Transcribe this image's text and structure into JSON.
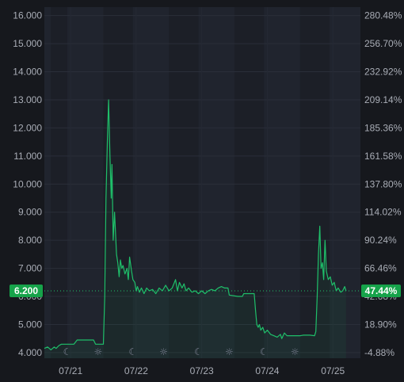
{
  "chart_data": {
    "type": "line",
    "x_tick_labels": [
      "07/21",
      "07/22",
      "07/23",
      "07/24",
      "07/25"
    ],
    "y_left_ticks": [
      "16.000",
      "15.000",
      "14.000",
      "13.000",
      "12.000",
      "11.000",
      "10.000",
      "9.000",
      "8.000",
      "7.000",
      "6.000",
      "5.000",
      "4.000"
    ],
    "y_right_ticks": [
      "280.48%",
      "256.70%",
      "232.92%",
      "209.14%",
      "185.36%",
      "161.58%",
      "137.80%",
      "114.02%",
      "90.24%",
      "66.46%",
      "42.68%",
      "18.90%",
      "-4.88%"
    ],
    "ylim": [
      3.8,
      16.3
    ],
    "xlim": [
      20.6,
      25.42
    ],
    "current_value_label": "6.200",
    "current_change_label": "47.44%",
    "current_value": 6.2,
    "night_bands": [
      [
        20.7,
        20.95
      ],
      [
        21.5,
        21.95
      ],
      [
        22.5,
        22.95
      ],
      [
        23.5,
        23.95
      ],
      [
        24.5,
        24.95
      ]
    ],
    "markers": [
      {
        "symbol": "moon",
        "x": 20.95
      },
      {
        "symbol": "sun",
        "x": 21.42
      },
      {
        "symbol": "moon",
        "x": 21.95
      },
      {
        "symbol": "sun",
        "x": 22.42
      },
      {
        "symbol": "moon",
        "x": 22.95
      },
      {
        "symbol": "sun",
        "x": 23.42
      },
      {
        "symbol": "moon",
        "x": 23.95
      },
      {
        "symbol": "sun",
        "x": 24.42
      }
    ],
    "colors": {
      "line": "#1fbf6a",
      "badge": "#16a34a",
      "background": "#16181d",
      "night": "#1c1f27",
      "day": "#20242e"
    },
    "series": [
      {
        "values": [
          [
            20.6,
            4.15
          ],
          [
            20.65,
            4.2
          ],
          [
            20.7,
            4.1
          ],
          [
            20.75,
            4.2
          ],
          [
            20.78,
            4.15
          ],
          [
            20.82,
            4.25
          ],
          [
            20.86,
            4.3
          ],
          [
            21.05,
            4.3
          ],
          [
            21.1,
            4.45
          ],
          [
            21.35,
            4.45
          ],
          [
            21.38,
            4.3
          ],
          [
            21.5,
            4.3
          ],
          [
            21.52,
            6.0
          ],
          [
            21.54,
            9.5
          ],
          [
            21.56,
            11.5
          ],
          [
            21.58,
            13.0
          ],
          [
            21.6,
            11.0
          ],
          [
            21.62,
            9.5
          ],
          [
            21.63,
            10.7
          ],
          [
            21.65,
            8.0
          ],
          [
            21.67,
            9.0
          ],
          [
            21.7,
            7.5
          ],
          [
            21.72,
            7.2
          ],
          [
            21.74,
            6.7
          ],
          [
            21.76,
            7.3
          ],
          [
            21.78,
            7.0
          ],
          [
            21.8,
            7.1
          ],
          [
            21.83,
            6.8
          ],
          [
            21.86,
            7.0
          ],
          [
            21.88,
            6.6
          ],
          [
            21.9,
            7.4
          ],
          [
            21.93,
            6.9
          ],
          [
            21.95,
            6.6
          ],
          [
            21.98,
            6.5
          ],
          [
            22.0,
            6.2
          ],
          [
            22.02,
            6.35
          ],
          [
            22.05,
            6.15
          ],
          [
            22.08,
            6.3
          ],
          [
            22.12,
            6.1
          ],
          [
            22.16,
            6.3
          ],
          [
            22.2,
            6.2
          ],
          [
            22.25,
            6.25
          ],
          [
            22.3,
            6.1
          ],
          [
            22.35,
            6.3
          ],
          [
            22.4,
            6.2
          ],
          [
            22.45,
            6.4
          ],
          [
            22.5,
            6.2
          ],
          [
            22.55,
            6.3
          ],
          [
            22.6,
            6.6
          ],
          [
            22.63,
            6.2
          ],
          [
            22.66,
            6.5
          ],
          [
            22.7,
            6.3
          ],
          [
            22.73,
            6.45
          ],
          [
            22.76,
            6.2
          ],
          [
            22.8,
            6.3
          ],
          [
            22.85,
            6.15
          ],
          [
            22.9,
            6.2
          ],
          [
            22.95,
            6.1
          ],
          [
            23.0,
            6.2
          ],
          [
            23.05,
            6.1
          ],
          [
            23.1,
            6.2
          ],
          [
            23.15,
            6.25
          ],
          [
            23.2,
            6.2
          ],
          [
            23.25,
            6.3
          ],
          [
            23.3,
            6.35
          ],
          [
            23.35,
            6.3
          ],
          [
            23.4,
            6.3
          ],
          [
            23.42,
            6.05
          ],
          [
            23.55,
            6.0
          ],
          [
            23.62,
            6.0
          ],
          [
            23.64,
            6.1
          ],
          [
            23.8,
            6.1
          ],
          [
            23.82,
            5.5
          ],
          [
            23.84,
            5.0
          ],
          [
            23.86,
            4.9
          ],
          [
            23.88,
            5.0
          ],
          [
            23.9,
            4.8
          ],
          [
            23.93,
            4.9
          ],
          [
            23.96,
            4.7
          ],
          [
            24.0,
            4.8
          ],
          [
            24.05,
            4.65
          ],
          [
            24.1,
            4.6
          ],
          [
            24.15,
            4.55
          ],
          [
            24.2,
            4.65
          ],
          [
            24.22,
            4.5
          ],
          [
            24.26,
            4.7
          ],
          [
            24.3,
            4.6
          ],
          [
            24.35,
            4.6
          ],
          [
            24.5,
            4.6
          ],
          [
            24.55,
            4.62
          ],
          [
            24.65,
            4.62
          ],
          [
            24.72,
            4.6
          ],
          [
            24.74,
            4.75
          ],
          [
            24.76,
            6.0
          ],
          [
            24.78,
            7.5
          ],
          [
            24.8,
            8.5
          ],
          [
            24.82,
            7.0
          ],
          [
            24.84,
            7.2
          ],
          [
            24.86,
            6.6
          ],
          [
            24.88,
            8.0
          ],
          [
            24.9,
            6.9
          ],
          [
            24.93,
            6.6
          ],
          [
            24.96,
            6.7
          ],
          [
            24.99,
            6.4
          ],
          [
            25.02,
            6.5
          ],
          [
            25.05,
            6.2
          ],
          [
            25.08,
            6.3
          ],
          [
            25.12,
            6.15
          ],
          [
            25.15,
            6.2
          ],
          [
            25.18,
            6.35
          ],
          [
            25.2,
            6.2
          ]
        ]
      }
    ]
  }
}
